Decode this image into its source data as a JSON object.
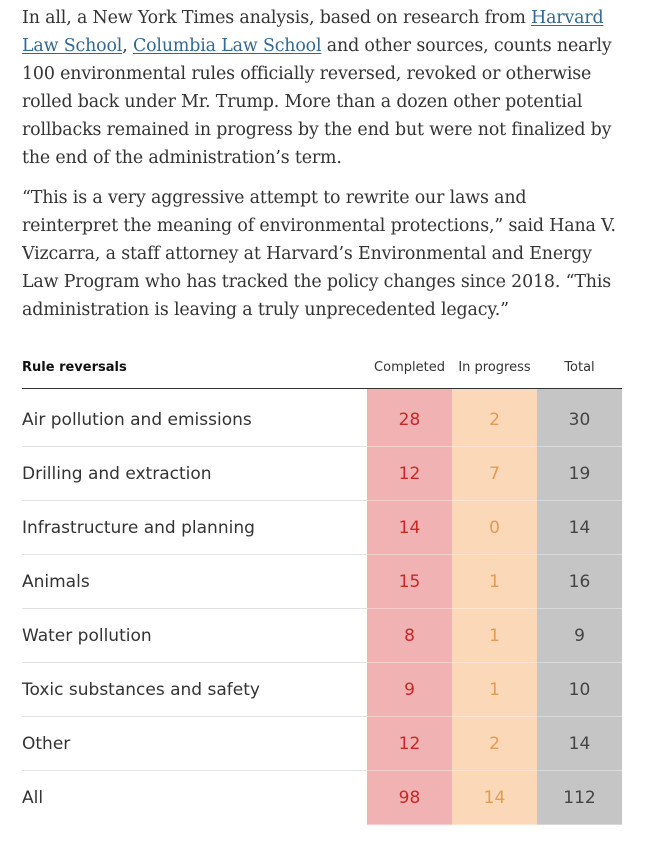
{
  "paragraphs": {
    "p1": {
      "before": "In all, a New York Times analysis, based on research from ",
      "link1": "Harvard Law School",
      "between": ", ",
      "link2": "Columbia Law School",
      "after": " and other sources, counts nearly 100 environmental rules officially reversed, revoked or otherwise rolled back under Mr. Trump. More than a dozen other potential rollbacks remained in progress by the end but were not finalized by the end of the administration’s term."
    },
    "p2": "“This is a very aggressive attempt to rewrite our laws and reinterpret the meaning of environmental protections,” said Hana V. Vizcarra, a staff attorney at Harvard’s Environmental and Energy Law Program who has tracked the policy changes since 2018. “This administration is leaving a truly unprecedented legacy.”"
  },
  "table": {
    "headers": {
      "category": "Rule reversals",
      "completed": "Completed",
      "in_progress": "In progress",
      "total": "Total"
    },
    "rows": [
      {
        "category": "Air pollution and emissions",
        "completed": "28",
        "in_progress": "2",
        "total": "30"
      },
      {
        "category": "Drilling and extraction",
        "completed": "12",
        "in_progress": "7",
        "total": "19"
      },
      {
        "category": "Infrastructure and planning",
        "completed": "14",
        "in_progress": "0",
        "total": "14"
      },
      {
        "category": "Animals",
        "completed": "15",
        "in_progress": "1",
        "total": "16"
      },
      {
        "category": "Water pollution",
        "completed": "8",
        "in_progress": "1",
        "total": "9"
      },
      {
        "category": "Toxic substances and safety",
        "completed": "9",
        "in_progress": "1",
        "total": "10"
      },
      {
        "category": "Other",
        "completed": "12",
        "in_progress": "2",
        "total": "14"
      },
      {
        "category": "All",
        "completed": "98",
        "in_progress": "14",
        "total": "112"
      }
    ],
    "colors": {
      "completed_bg": "#f0b2b2",
      "completed_text": "#c82828",
      "in_progress_bg": "#fbd8b8",
      "in_progress_text": "#e39a55",
      "total_bg": "#c5c5c5",
      "total_text": "#444444",
      "link": "#326891"
    }
  }
}
